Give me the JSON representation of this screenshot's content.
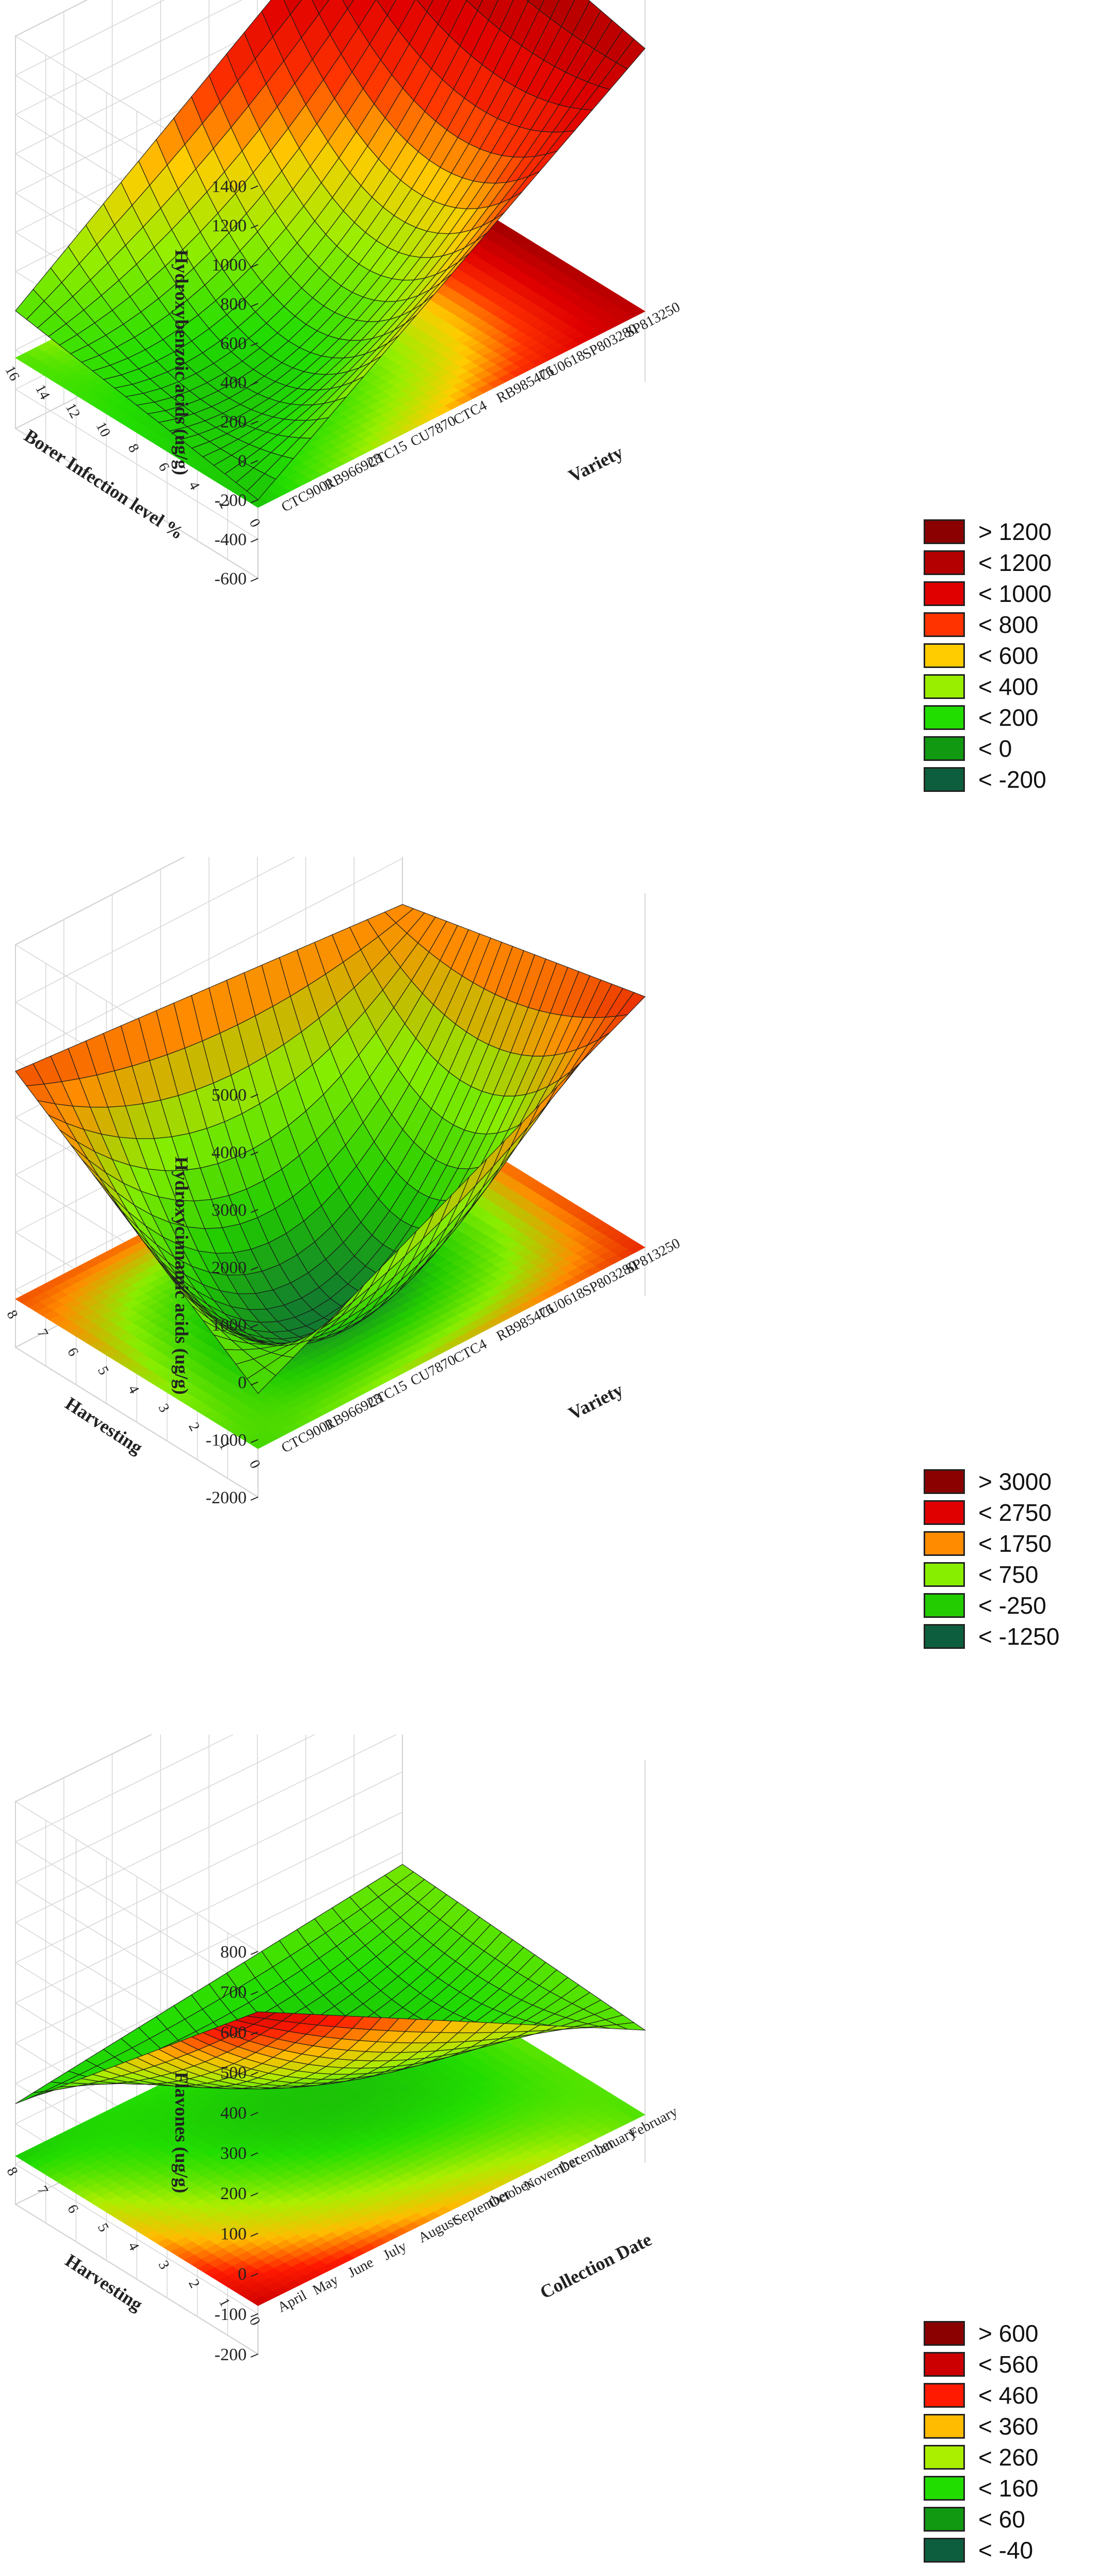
{
  "chart_data": [
    {
      "type": "surface3d",
      "zlabel": "Hydroxybenzoic acids (ug/g)",
      "xlabel": "Variety",
      "ylabel": "Borer Infection level %",
      "x_ticks": [
        "CTC9001",
        "RB966928",
        "CTC15",
        "CU7870",
        "CTC4",
        "RB985476",
        "CU0618",
        "SP803280",
        "SP813250"
      ],
      "y_ticks": [
        "0",
        "2",
        "4",
        "6",
        "8",
        "10",
        "12",
        "14",
        "16"
      ],
      "z_ticks": [
        "-600",
        "-400",
        "-200",
        "0",
        "200",
        "400",
        "600",
        "800",
        "1000",
        "1200",
        "1400"
      ],
      "zlim": [
        -600,
        1400
      ],
      "corner_values": {
        "x_first_y_first": -200,
        "x_last_y_first": 1100,
        "x_first_y_last": 0,
        "x_last_y_last": 1400,
        "center": 50
      },
      "legend": [
        "> 1200",
        "< 1200",
        "< 1000",
        "< 800",
        "< 600",
        "< 400",
        "< 200",
        "< 0",
        "< -200"
      ],
      "legend_colors": [
        "#8b0000",
        "#b40000",
        "#e00000",
        "#ff3300",
        "#ffcc00",
        "#99ee00",
        "#22dd00",
        "#119911",
        "#0d5e3f"
      ]
    },
    {
      "type": "surface3d",
      "zlabel": "Hydroxycinnamic acids (ug/g)",
      "xlabel": "Variety",
      "ylabel": "Harvesting",
      "x_ticks": [
        "CTC9001",
        "RB966928",
        "CTC15",
        "CU7870",
        "CTC4",
        "RB985476",
        "CU0618",
        "SP803280",
        "SP813250"
      ],
      "y_ticks": [
        "0",
        "1",
        "2",
        "3",
        "4",
        "5",
        "6",
        "7",
        "8"
      ],
      "z_ticks": [
        "-2000",
        "-1000",
        "0",
        "1000",
        "2000",
        "3000",
        "4000",
        "5000"
      ],
      "zlim": [
        -2000,
        5000
      ],
      "corner_values": {
        "x_first_y_first": -200,
        "x_last_y_first": 3200,
        "x_first_y_last": 2800,
        "x_last_y_last": 2200,
        "center": -1600
      },
      "legend": [
        "> 3000",
        "< 2750",
        "< 1750",
        "< 750",
        "< -250",
        "< -1250"
      ],
      "legend_colors": [
        "#8b0000",
        "#e00000",
        "#ff8c00",
        "#88ee00",
        "#22cc00",
        "#0d5e3f"
      ]
    },
    {
      "type": "surface3d",
      "zlabel": "Flavones (ug/g)",
      "xlabel": "Collection Date",
      "ylabel": "Harvesting",
      "x_ticks": [
        "April",
        "May",
        "June",
        "July",
        "August",
        "September",
        "October",
        "November",
        "December",
        "January",
        "February"
      ],
      "y_ticks": [
        "0",
        "1",
        "2",
        "3",
        "4",
        "5",
        "6",
        "7",
        "8"
      ],
      "z_ticks": [
        "-200",
        "-100",
        "0",
        "100",
        "200",
        "300",
        "400",
        "500",
        "600",
        "700",
        "800"
      ],
      "zlim": [
        -200,
        800
      ],
      "corner_values": {
        "x_first_y_first": 650,
        "x_last_y_first": 130,
        "x_first_y_last": 50,
        "x_last_y_last": 170,
        "center": 60
      },
      "legend": [
        "> 600",
        "< 560",
        "< 460",
        "< 360",
        "< 260",
        "< 160",
        "< 60",
        "< -40"
      ],
      "legend_colors": [
        "#8b0000",
        "#cc0000",
        "#ff1a00",
        "#ffbb00",
        "#aaee00",
        "#22dd00",
        "#119911",
        "#0d5e3f"
      ]
    }
  ]
}
